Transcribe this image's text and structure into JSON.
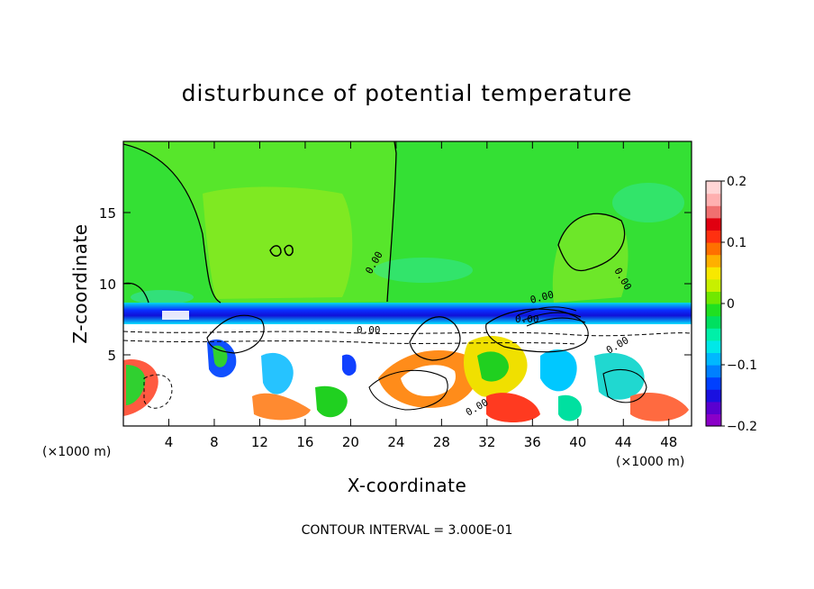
{
  "chart_data": {
    "type": "heatmap",
    "title": "disturbunce of potential temperature",
    "xlabel": "X-coordinate",
    "ylabel": "Z-coordinate",
    "x_unit": "(×1000 m)",
    "y_unit": "(×1000 m)",
    "xlim": [
      0,
      50
    ],
    "ylim": [
      0,
      20
    ],
    "x_ticks": [
      4,
      8,
      12,
      16,
      20,
      24,
      28,
      32,
      36,
      40,
      44,
      48
    ],
    "y_ticks": [
      5,
      10,
      15
    ],
    "x_tick_labels": [
      "4",
      "8",
      "12",
      "16",
      "20",
      "24",
      "28",
      "32",
      "36",
      "40",
      "44",
      "48"
    ],
    "y_tick_labels": [
      "5",
      "10",
      "15"
    ],
    "colorbar": {
      "min": -0.2,
      "max": 0.2,
      "ticks": [
        "0.2",
        "0.1",
        "0",
        "−0.1",
        "−0.2"
      ],
      "colors": [
        "#8a00c8",
        "#5a00d0",
        "#1a10e0",
        "#0040ff",
        "#0080ff",
        "#00b8ff",
        "#00e8e8",
        "#00f0a8",
        "#00e060",
        "#20e020",
        "#70e800",
        "#c8f000",
        "#f8e800",
        "#ffb000",
        "#ff7000",
        "#ff3010",
        "#e00010",
        "#f07070",
        "#ffb0b0",
        "#ffd6d6"
      ]
    },
    "contour_labels": [
      "0.00",
      "0.00",
      "0.00",
      "0.00",
      "0.00",
      "0.00",
      "0.00"
    ],
    "contour_interval_text": "CONTOUR INTERVAL = 3.000E-01",
    "colors": {
      "background": "#ffffff",
      "field_base": "#30e030",
      "upper_light": "#78e828",
      "band_dark": "#1010d8",
      "band_light": "#10c0ff",
      "contour": "#000000"
    }
  }
}
